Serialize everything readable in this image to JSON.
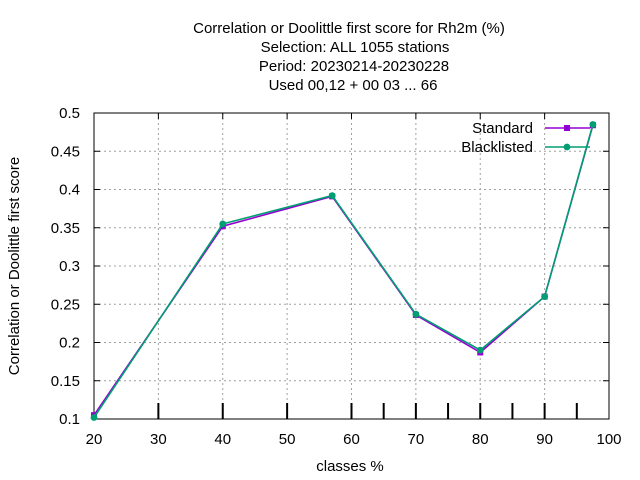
{
  "chart_data": {
    "type": "line",
    "title_lines": [
      "Correlation or Doolittle first score  for Rh2m (%)",
      "Selection: ALL   1055 stations",
      "Period: 20230214-20230228",
      "Used  00,12  + 00 03 ... 66"
    ],
    "xlabel": "classes %",
    "ylabel": "Correlation or Doolittle first score",
    "xlim": [
      20,
      100
    ],
    "ylim": [
      0.1,
      0.5
    ],
    "xticks": [
      20,
      30,
      40,
      50,
      60,
      70,
      80,
      90,
      100
    ],
    "yticks": [
      0.1,
      0.15,
      0.2,
      0.25,
      0.3,
      0.35,
      0.4,
      0.45,
      0.5
    ],
    "xtick_labels": [
      "20",
      "30",
      "40",
      "50",
      "60",
      "70",
      "80",
      "90",
      "100"
    ],
    "ytick_labels": [
      "0.1",
      "0.15",
      "0.2",
      "0.25",
      "0.3",
      "0.35",
      "0.4",
      "0.45",
      "0.5"
    ],
    "grid": true,
    "legend_position": "top-right",
    "x": [
      20,
      40,
      57,
      70,
      80,
      90,
      97.5
    ],
    "series": [
      {
        "name": "Standard",
        "color": "#9400d3",
        "marker": "square",
        "values": [
          0.105,
          0.352,
          0.391,
          0.236,
          0.187,
          0.26,
          0.484
        ]
      },
      {
        "name": "Blacklisted",
        "color": "#009e73",
        "marker": "circle",
        "values": [
          0.102,
          0.355,
          0.392,
          0.237,
          0.19,
          0.26,
          0.485
        ]
      }
    ],
    "station_markers_x": [
      30,
      40,
      50,
      60,
      65,
      70,
      75,
      80,
      85,
      90,
      95
    ]
  }
}
